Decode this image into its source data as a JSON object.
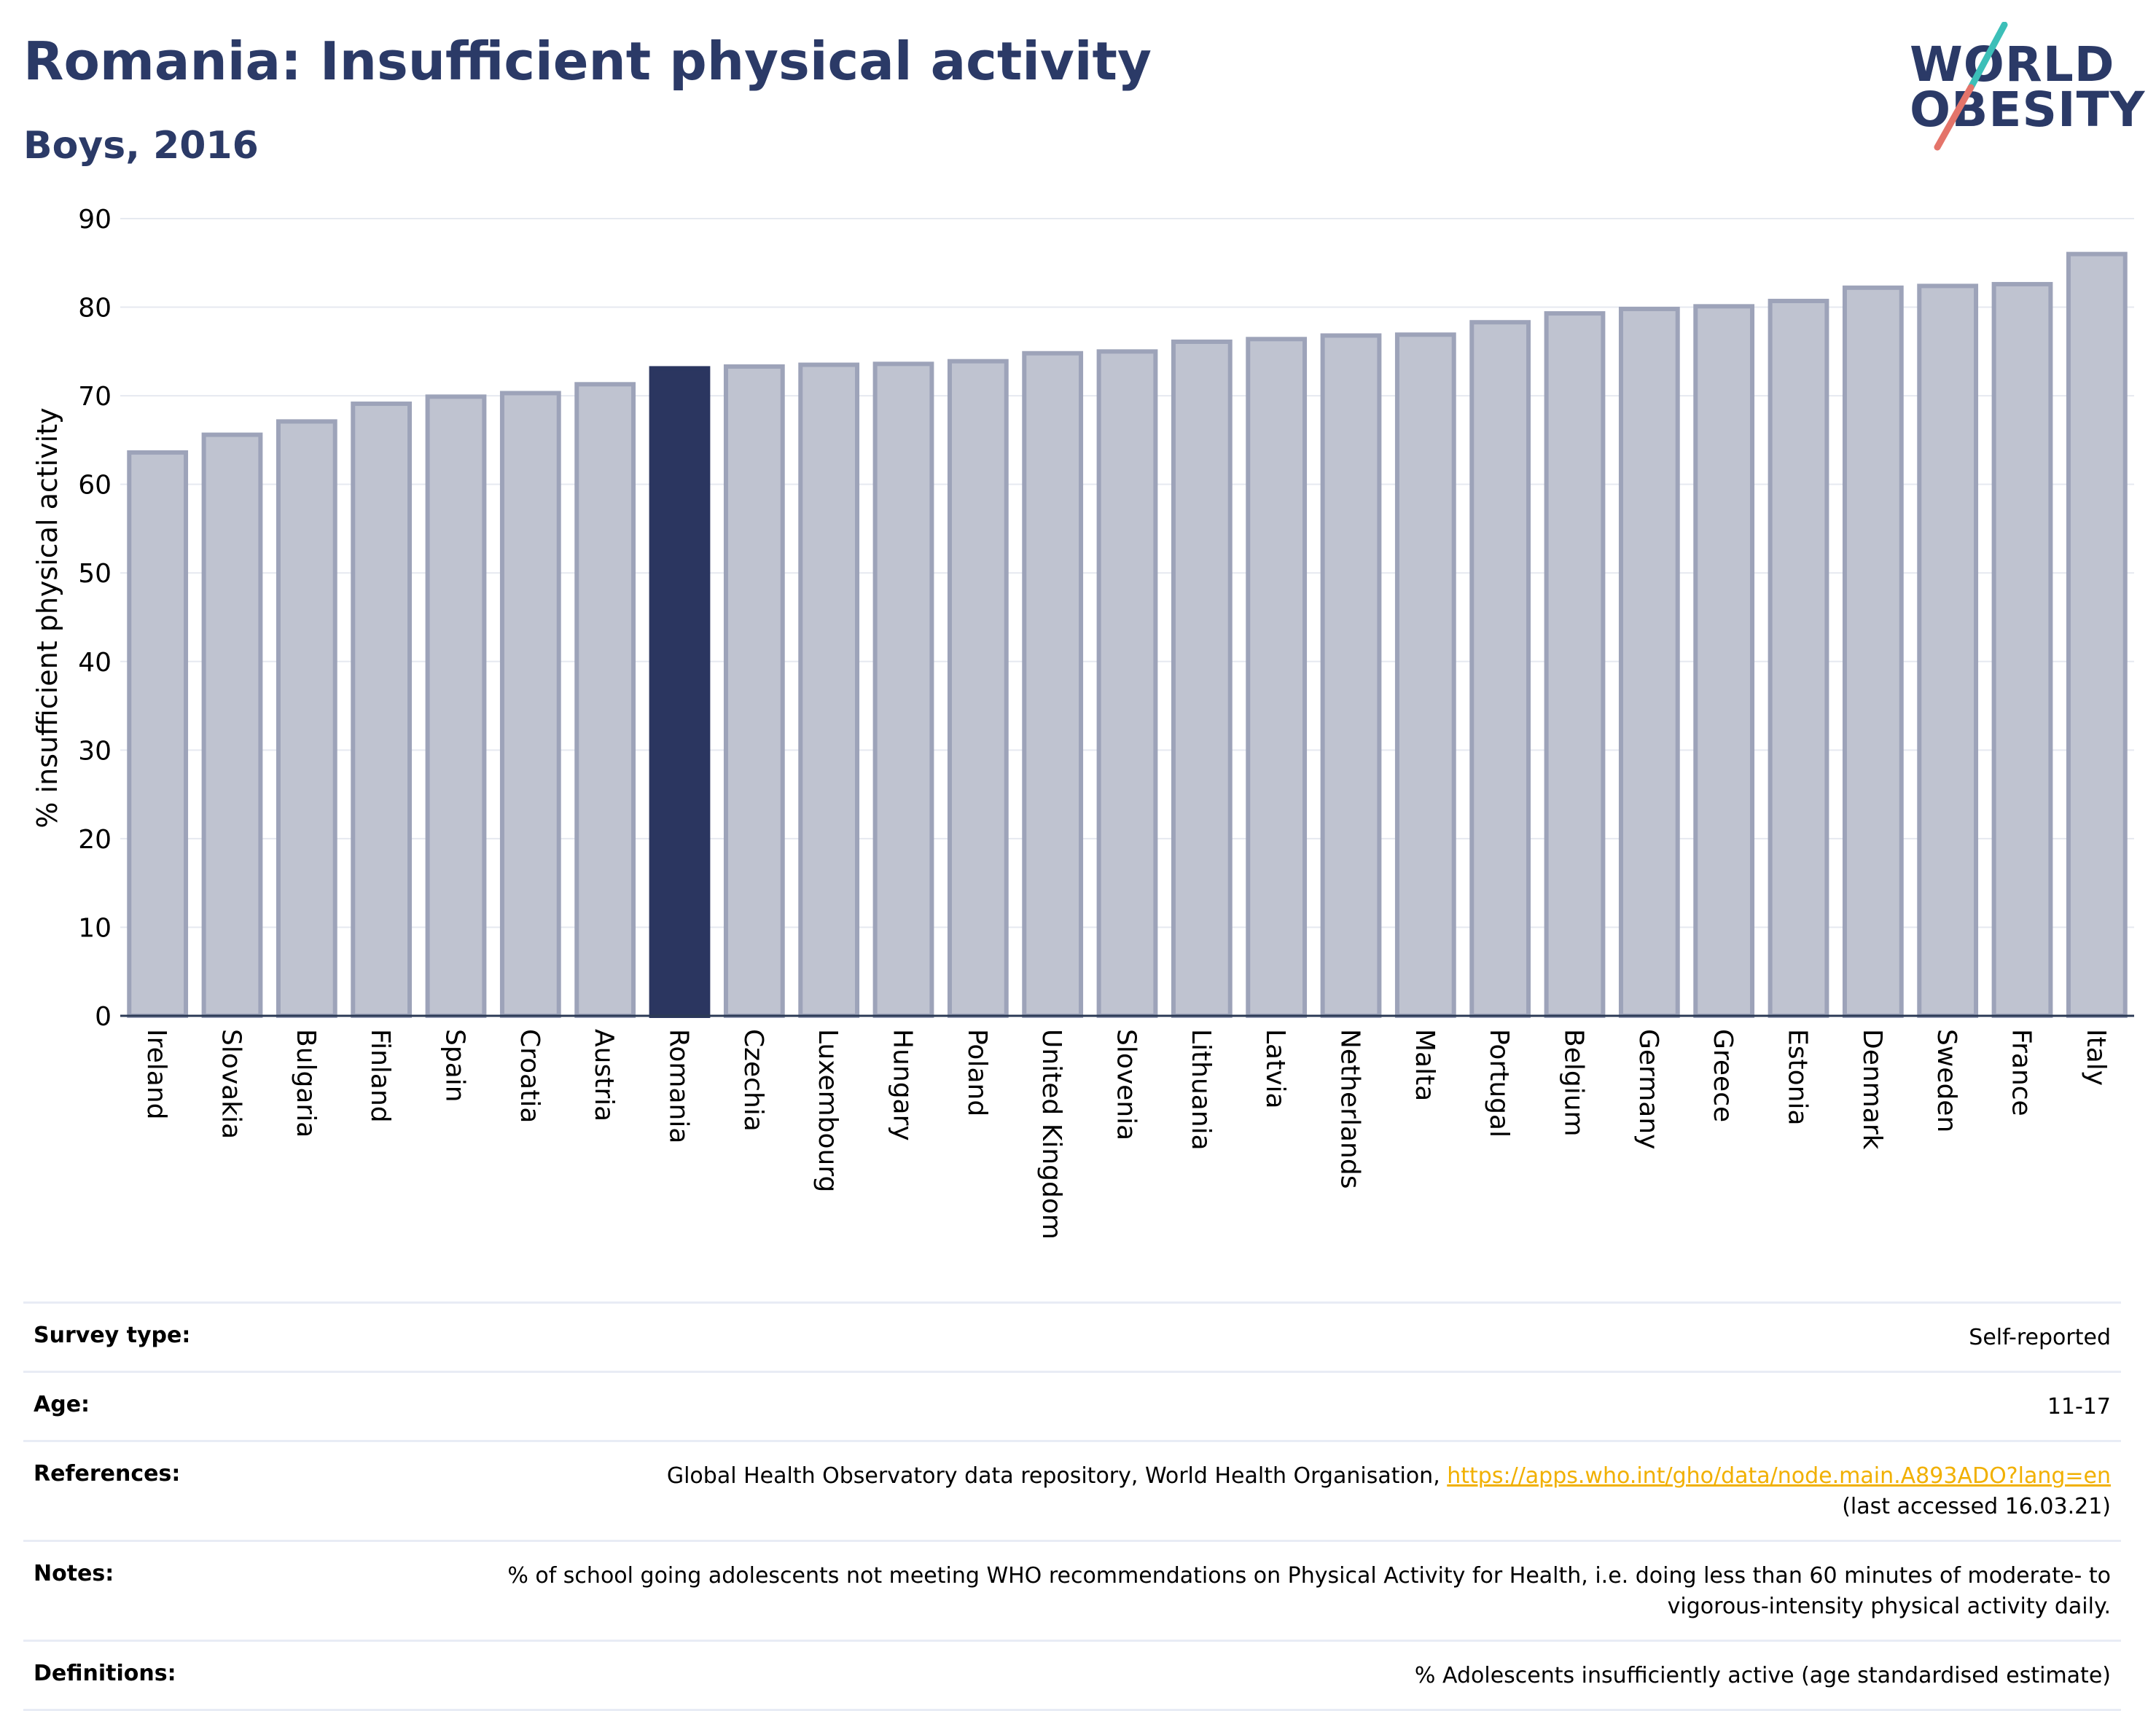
{
  "header": {
    "title": "Romania: Insufficient physical activity",
    "subtitle": "Boys, 2016"
  },
  "logo": {
    "line1": "WORLD",
    "line2": "OBESITY",
    "colors": {
      "text": "#2b3a67",
      "slash_top": "#3cbfb8",
      "slash_bottom": "#e4746a"
    }
  },
  "chart_data": {
    "type": "bar",
    "title": "Romania: Insufficient physical activity",
    "subtitle": "Boys, 2016",
    "xlabel": "",
    "ylabel": "% insufficient physical activity",
    "ylim": [
      0,
      90
    ],
    "yticks": [
      0,
      10,
      20,
      30,
      40,
      50,
      60,
      70,
      80,
      90
    ],
    "grid": true,
    "highlight": "Romania",
    "colors": {
      "bar": "#bfc3d0",
      "bar_border": "#9da3b9",
      "highlight": "#2b3660"
    },
    "categories": [
      "Ireland",
      "Slovakia",
      "Bulgaria",
      "Finland",
      "Spain",
      "Croatia",
      "Austria",
      "Romania",
      "Czechia",
      "Luxembourg",
      "Hungary",
      "Poland",
      "United Kingdom",
      "Slovenia",
      "Lithuania",
      "Latvia",
      "Netherlands",
      "Malta",
      "Portugal",
      "Belgium",
      "Germany",
      "Greece",
      "Estonia",
      "Denmark",
      "Sweden",
      "France",
      "Italy"
    ],
    "values": [
      63.6,
      65.6,
      67.1,
      69.1,
      69.9,
      70.3,
      71.3,
      73.1,
      73.3,
      73.5,
      73.6,
      73.9,
      74.8,
      75.0,
      76.1,
      76.4,
      76.8,
      76.9,
      78.3,
      79.3,
      79.8,
      80.1,
      80.7,
      82.2,
      82.4,
      82.6,
      86.0
    ]
  },
  "info": {
    "rows": [
      {
        "label": "Survey type:",
        "value": "Self-reported"
      },
      {
        "label": "Age:",
        "value": "11-17"
      },
      {
        "label": "References:",
        "value": "Global Health Observatory data repository, World Health Organisation, ",
        "link": "https://apps.who.int/gho/data/node.main.A893ADO?lang=en",
        "value_after": "(last accessed 16.03.21)"
      },
      {
        "label": "Notes:",
        "value": "% of school going adolescents not meeting WHO recommendations on Physical Activity for Health, i.e. doing less than 60 minutes of moderate- to vigorous-intensity physical activity daily."
      },
      {
        "label": "Definitions:",
        "value": "% Adolescents insufficiently active (age standardised estimate)"
      }
    ]
  }
}
